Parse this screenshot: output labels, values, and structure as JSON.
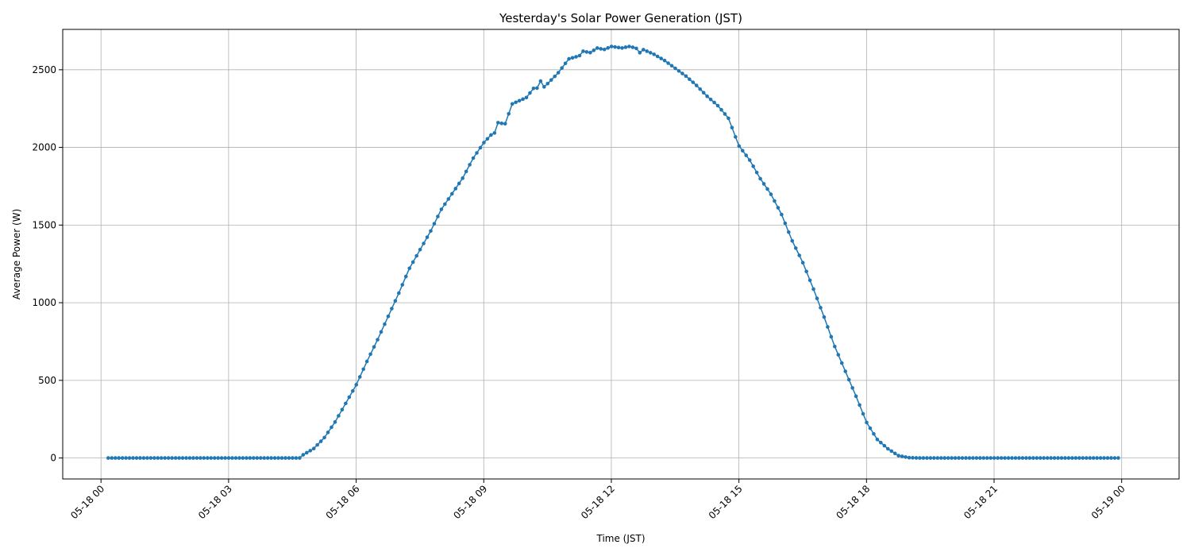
{
  "chart_data": {
    "type": "line",
    "title": "Yesterday's Solar Power Generation (JST)",
    "xlabel": "Time (JST)",
    "ylabel": "Average Power (W)",
    "x_unit": "hours since 05-18 00:00 JST",
    "xlim": [
      -0.9,
      25.35
    ],
    "ylim": [
      -135,
      2760
    ],
    "x_ticks": [
      0,
      3,
      6,
      9,
      12,
      15,
      18,
      21,
      24
    ],
    "x_tick_labels": [
      "05-18 00",
      "05-18 03",
      "05-18 06",
      "05-18 09",
      "05-18 12",
      "05-18 15",
      "05-18 18",
      "05-18 21",
      "05-19 00"
    ],
    "y_ticks": [
      0,
      500,
      1000,
      1500,
      2000,
      2500
    ],
    "y_tick_labels": [
      "0",
      "500",
      "1000",
      "1500",
      "2000",
      "2500"
    ],
    "grid": true,
    "color": "#1f77b4",
    "marker": "circle",
    "series": [
      {
        "name": "",
        "points": [
          [
            0.17,
            0
          ],
          [
            4.67,
            0
          ],
          [
            4.75,
            20
          ],
          [
            5.0,
            60
          ],
          [
            5.25,
            130
          ],
          [
            5.5,
            230
          ],
          [
            5.75,
            350
          ],
          [
            6.0,
            470
          ],
          [
            6.25,
            620
          ],
          [
            6.5,
            760
          ],
          [
            6.75,
            910
          ],
          [
            7.0,
            1060
          ],
          [
            7.25,
            1220
          ],
          [
            7.5,
            1340
          ],
          [
            7.75,
            1460
          ],
          [
            8.0,
            1600
          ],
          [
            8.25,
            1700
          ],
          [
            8.5,
            1800
          ],
          [
            8.75,
            1930
          ],
          [
            9.0,
            2030
          ],
          [
            9.17,
            2080
          ],
          [
            9.25,
            2090
          ],
          [
            9.33,
            2160
          ],
          [
            9.5,
            2150
          ],
          [
            9.67,
            2280
          ],
          [
            9.83,
            2300
          ],
          [
            10.0,
            2320
          ],
          [
            10.17,
            2380
          ],
          [
            10.25,
            2380
          ],
          [
            10.33,
            2430
          ],
          [
            10.42,
            2390
          ],
          [
            10.5,
            2410
          ],
          [
            10.75,
            2480
          ],
          [
            11.0,
            2570
          ],
          [
            11.25,
            2590
          ],
          [
            11.33,
            2620
          ],
          [
            11.5,
            2610
          ],
          [
            11.67,
            2640
          ],
          [
            11.83,
            2630
          ],
          [
            12.0,
            2650
          ],
          [
            12.25,
            2640
          ],
          [
            12.42,
            2650
          ],
          [
            12.58,
            2640
          ],
          [
            12.67,
            2610
          ],
          [
            12.75,
            2630
          ],
          [
            13.0,
            2600
          ],
          [
            13.25,
            2560
          ],
          [
            13.5,
            2510
          ],
          [
            13.75,
            2460
          ],
          [
            14.0,
            2400
          ],
          [
            14.25,
            2330
          ],
          [
            14.5,
            2270
          ],
          [
            14.75,
            2190
          ],
          [
            15.0,
            2010
          ],
          [
            15.25,
            1920
          ],
          [
            15.5,
            1800
          ],
          [
            15.75,
            1700
          ],
          [
            16.0,
            1570
          ],
          [
            16.25,
            1400
          ],
          [
            16.5,
            1260
          ],
          [
            16.75,
            1090
          ],
          [
            17.0,
            910
          ],
          [
            17.25,
            720
          ],
          [
            17.5,
            560
          ],
          [
            17.75,
            400
          ],
          [
            18.0,
            230
          ],
          [
            18.25,
            120
          ],
          [
            18.5,
            60
          ],
          [
            18.75,
            15
          ],
          [
            19.0,
            2
          ],
          [
            19.25,
            0
          ],
          [
            24.0,
            0
          ]
        ]
      }
    ]
  }
}
